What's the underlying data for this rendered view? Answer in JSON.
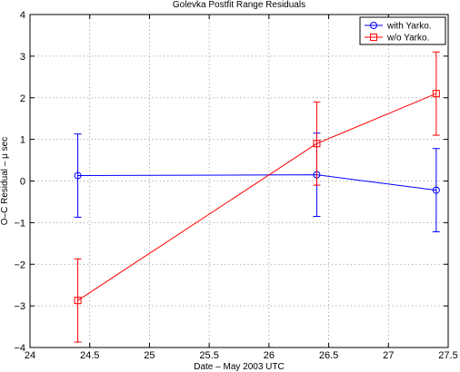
{
  "chart_data": {
    "type": "line",
    "title": "Golevka Postfit Range Residuals",
    "xlabel": "Date – May 2003 UTC",
    "ylabel": "O–C Residual – μ sec",
    "xlim": [
      24,
      27.5
    ],
    "ylim": [
      -4,
      4
    ],
    "xticks": [
      24,
      24.5,
      25,
      25.5,
      26,
      26.5,
      27,
      27.5
    ],
    "xtick_labels": [
      "24",
      "24.5",
      "25",
      "25.5",
      "26",
      "26.5",
      "27",
      "27.5"
    ],
    "yticks": [
      -4,
      -3,
      -2,
      -1,
      0,
      1,
      2,
      3,
      4
    ],
    "ytick_labels": [
      "−4",
      "−3",
      "−2",
      "−1",
      "0",
      "1",
      "2",
      "3",
      "4"
    ],
    "grid": true,
    "legend_position": "top-right",
    "series": [
      {
        "name": "with Yarko.",
        "color": "#0000ff",
        "marker": "circle",
        "x": [
          24.4,
          26.4,
          27.4
        ],
        "y": [
          0.13,
          0.15,
          -0.22
        ],
        "err": [
          1.0,
          1.0,
          1.0
        ]
      },
      {
        "name": "w/o Yarko.",
        "color": "#ff0000",
        "marker": "square",
        "x": [
          24.4,
          26.4,
          27.4
        ],
        "y": [
          -2.87,
          0.9,
          2.1
        ],
        "err": [
          1.0,
          1.0,
          1.0
        ]
      }
    ]
  }
}
